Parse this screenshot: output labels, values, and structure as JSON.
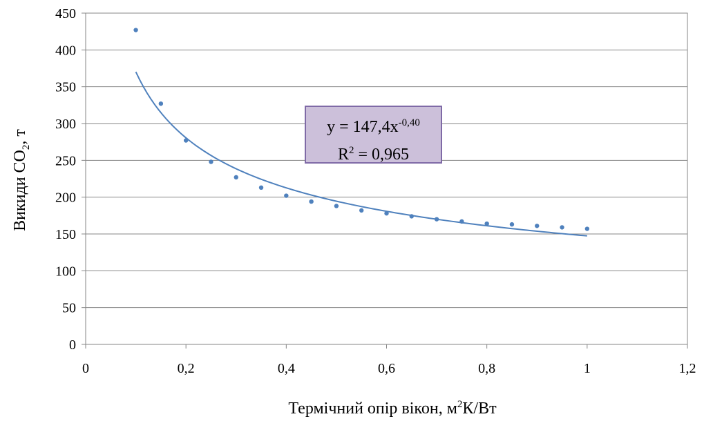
{
  "chart_data": {
    "type": "scatter",
    "xlabel_main": "Термічний опір вікон, м",
    "xlabel_sup": "2",
    "xlabel_tail": "К/Вт",
    "ylabel_main": "Викиди CO",
    "ylabel_sub": "2",
    "ylabel_tail": ", т",
    "xlim": [
      0,
      1.2
    ],
    "ylim": [
      0,
      450
    ],
    "xticks": [
      0,
      0.2,
      0.4,
      0.6,
      0.8,
      1,
      1.2
    ],
    "xtick_labels": [
      "0",
      "0,2",
      "0,4",
      "0,6",
      "0,8",
      "1",
      "1,2"
    ],
    "yticks": [
      0,
      50,
      100,
      150,
      200,
      250,
      300,
      350,
      400,
      450
    ],
    "ytick_labels": [
      "0",
      "50",
      "100",
      "150",
      "200",
      "250",
      "300",
      "350",
      "400",
      "450"
    ],
    "grid": "horizontal",
    "series": [
      {
        "x": [
          0.1,
          0.15,
          0.2,
          0.25,
          0.3,
          0.35,
          0.4,
          0.45,
          0.5,
          0.55,
          0.6,
          0.65,
          0.7,
          0.75,
          0.8,
          0.85,
          0.9,
          0.95,
          1.0
        ],
        "y": [
          427,
          327,
          277,
          248,
          227,
          213,
          202,
          194,
          188,
          182,
          178,
          174,
          170,
          167,
          164,
          163,
          161,
          159,
          157
        ],
        "color": "#4f81bd"
      }
    ],
    "trendline": {
      "type": "power",
      "a": 147.4,
      "b": -0.4,
      "x_range": [
        0.1,
        1.0
      ],
      "color": "#4f81bd"
    },
    "annotation": {
      "eq_main": "y = 147,4x",
      "eq_exp": "-0,40",
      "r2_main": "R",
      "r2_sup": "2",
      "r2_tail": " = 0,965"
    }
  }
}
